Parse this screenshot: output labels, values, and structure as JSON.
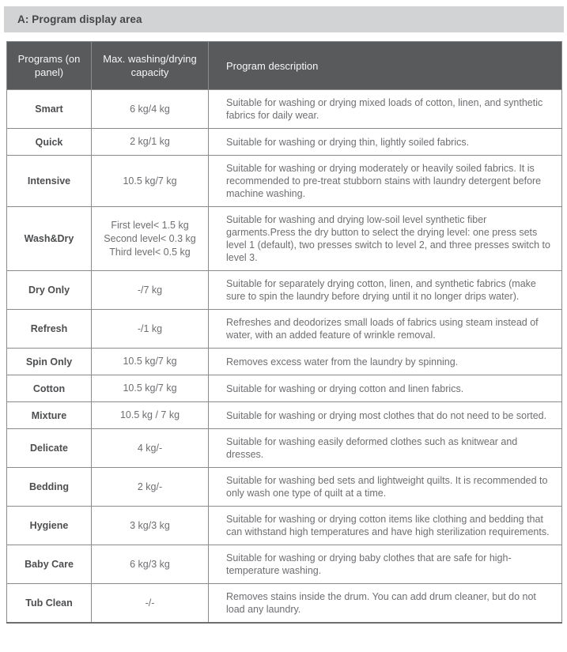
{
  "section_title": "A: Program display area",
  "colors": {
    "title_bar_bg": "#d2d3d4",
    "header_bg": "#595a5c",
    "header_text": "#ffffff",
    "border": "#8a8b8d",
    "body_text": "#6d6e71",
    "program_text": "#4d4e50"
  },
  "table": {
    "columns": [
      "Programs (on panel)",
      "Max. washing/drying capacity",
      "Program description"
    ],
    "rows": [
      {
        "program": "Smart",
        "capacity": "6 kg/4 kg",
        "description": "Suitable for washing or drying mixed loads of cotton, linen, and synthetic fabrics for daily wear."
      },
      {
        "program": "Quick",
        "capacity": "2 kg/1 kg",
        "description": "Suitable for washing or drying thin, lightly soiled fabrics."
      },
      {
        "program": "Intensive",
        "capacity": "10.5 kg/7 kg",
        "description": "Suitable for washing or drying moderately or heavily soiled fabrics. It is recommended to pre-treat stubborn stains with laundry detergent before machine washing."
      },
      {
        "program": "Wash&Dry",
        "capacity": "First level< 1.5 kg\nSecond level< 0.3 kg\nThird level< 0.5 kg",
        "description": "Suitable for washing and drying low-soil level synthetic fiber garments.Press the dry button to select the drying level: one press sets level 1 (default), two presses switch to level 2, and three presses switch to level 3."
      },
      {
        "program": "Dry Only",
        "capacity": "-/7 kg",
        "description": "Suitable for separately drying cotton, linen, and synthetic fabrics (make sure to spin the laundry before drying until it no longer drips water)."
      },
      {
        "program": "Refresh",
        "capacity": "-/1 kg",
        "description": "Refreshes and deodorizes small loads of fabrics using steam instead of water, with an added feature of wrinkle removal."
      },
      {
        "program": "Spin Only",
        "capacity": "10.5 kg/7 kg",
        "description": "Removes excess water from the laundry by spinning."
      },
      {
        "program": "Cotton",
        "capacity": "10.5 kg/7 kg",
        "description": "Suitable for washing or drying cotton and linen fabrics."
      },
      {
        "program": "Mixture",
        "capacity": "10.5 kg / 7 kg",
        "description": "Suitable for washing or drying most clothes that do not need to be sorted."
      },
      {
        "program": "Delicate",
        "capacity": "4 kg/-",
        "description": "Suitable for washing easily deformed clothes such as knitwear and dresses."
      },
      {
        "program": "Bedding",
        "capacity": "2 kg/-",
        "description": "Suitable for washing bed sets and lightweight quilts. It is recommended to only wash one type of quilt at a time."
      },
      {
        "program": "Hygiene",
        "capacity": "3 kg/3 kg",
        "description": "Suitable for washing or drying cotton items like clothing and bedding that can withstand high temperatures and have high sterilization requirements."
      },
      {
        "program": "Baby Care",
        "capacity": "6 kg/3 kg",
        "description": "Suitable for washing or drying baby clothes that are safe for high-temperature washing."
      },
      {
        "program": "Tub Clean",
        "capacity": "-/-",
        "description": "Removes stains inside the drum. You can add drum cleaner, but do not load any laundry."
      }
    ]
  }
}
